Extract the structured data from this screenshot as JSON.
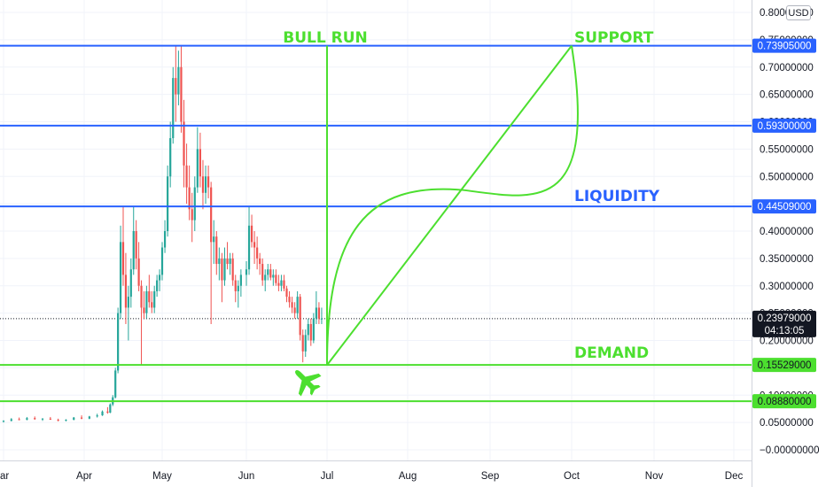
{
  "currency_badge": "USD",
  "chart_data": {
    "type": "candlestick",
    "y_axis": {
      "ticks": [
        0.8,
        0.75,
        0.7,
        0.65,
        0.6,
        0.55,
        0.5,
        0.45,
        0.4,
        0.35,
        0.3,
        0.25,
        0.2,
        0.15,
        0.1,
        0.05,
        0.0
      ],
      "tick_labels": [
        "0.80000000",
        "0.75000000",
        "0.70000000",
        "0.65000000",
        "0.60000000",
        "0.55000000",
        "0.50000000",
        "0.45000000",
        "0.40000000",
        "0.35000000",
        "0.30000000",
        "0.25000000",
        "0.20000000",
        "0.15000000",
        "0.10000000",
        "0.05000000",
        "−0.00000000"
      ],
      "ylim": [
        -0.012,
        0.81
      ]
    },
    "x_axis": {
      "labels": [
        "ar",
        "Apr",
        "May",
        "Jun",
        "Jul",
        "Aug",
        "Sep",
        "Oct",
        "Nov",
        "Dec"
      ],
      "label_dates": [
        "2021-03-01",
        "2021-04-01",
        "2021-05-01",
        "2021-06-01",
        "2021-07-01",
        "2021-08-01",
        "2021-09-01",
        "2021-10-01",
        "2021-11-01",
        "2021-12-01"
      ],
      "xlim": [
        "2021-03-01",
        "2021-12-05"
      ]
    },
    "horizontal_levels": [
      {
        "value": 0.73905,
        "label": "0.73905000",
        "color": "#2962ff"
      },
      {
        "value": 0.593,
        "label": "0.59300000",
        "color": "#2962ff"
      },
      {
        "value": 0.44509,
        "label": "0.44509000",
        "color": "#2962ff"
      },
      {
        "value": 0.15529,
        "label": "0.15529000",
        "color": "#4cdf2f"
      },
      {
        "value": 0.0888,
        "label": "0.08880000",
        "color": "#4cdf2f"
      }
    ],
    "current_price": {
      "value": 0.23979,
      "label": "0.23979000",
      "countdown": "04:13:05"
    },
    "annotations": [
      {
        "text": "BULL RUN",
        "color": "#4cdf2f"
      },
      {
        "text": "SUPPORT",
        "color": "#4cdf2f"
      },
      {
        "text": "LIQUIDITY",
        "color": "#2962ff"
      },
      {
        "text": "DEMAND",
        "color": "#4cdf2f"
      }
    ],
    "drawing": {
      "bull_run_line_date": "2021-07-01",
      "projection_start": {
        "date": "2021-07-01",
        "value": 0.155
      },
      "projection_end": {
        "date": "2021-10-01",
        "value": 0.739
      },
      "curve_midpoint": {
        "date": "2021-08-22",
        "value": 0.475
      }
    },
    "airplane_icon": "airplane-icon",
    "colors": {
      "up": "#26a69a",
      "down": "#ef5350",
      "blue_line": "#2962ff",
      "green_line": "#4cdf2f",
      "current": "#131722"
    },
    "candles": [
      [
        "2021-03-01",
        0.052,
        0.054,
        0.05,
        0.053
      ],
      [
        "2021-03-04",
        0.053,
        0.058,
        0.052,
        0.056
      ],
      [
        "2021-03-07",
        0.056,
        0.059,
        0.054,
        0.055
      ],
      [
        "2021-03-10",
        0.055,
        0.06,
        0.054,
        0.058
      ],
      [
        "2021-03-13",
        0.058,
        0.061,
        0.055,
        0.056
      ],
      [
        "2021-03-16",
        0.056,
        0.058,
        0.053,
        0.057
      ],
      [
        "2021-03-19",
        0.057,
        0.06,
        0.055,
        0.055
      ],
      [
        "2021-03-22",
        0.055,
        0.057,
        0.052,
        0.054
      ],
      [
        "2021-03-25",
        0.054,
        0.056,
        0.052,
        0.055
      ],
      [
        "2021-03-28",
        0.055,
        0.06,
        0.054,
        0.059
      ],
      [
        "2021-03-31",
        0.059,
        0.063,
        0.056,
        0.057
      ],
      [
        "2021-04-03",
        0.057,
        0.062,
        0.056,
        0.061
      ],
      [
        "2021-04-06",
        0.061,
        0.066,
        0.059,
        0.063
      ],
      [
        "2021-04-08",
        0.063,
        0.072,
        0.062,
        0.07
      ],
      [
        "2021-04-10",
        0.07,
        0.078,
        0.066,
        0.068
      ],
      [
        "2021-04-11",
        0.068,
        0.085,
        0.067,
        0.083
      ],
      [
        "2021-04-12",
        0.083,
        0.1,
        0.08,
        0.096
      ],
      [
        "2021-04-13",
        0.096,
        0.15,
        0.094,
        0.145
      ],
      [
        "2021-04-14",
        0.145,
        0.26,
        0.14,
        0.25
      ],
      [
        "2021-04-15",
        0.25,
        0.41,
        0.24,
        0.38
      ],
      [
        "2021-04-16",
        0.38,
        0.445,
        0.3,
        0.32
      ],
      [
        "2021-04-17",
        0.32,
        0.36,
        0.23,
        0.26
      ],
      [
        "2021-04-18",
        0.26,
        0.3,
        0.2,
        0.28
      ],
      [
        "2021-04-19",
        0.28,
        0.35,
        0.26,
        0.33
      ],
      [
        "2021-04-20",
        0.33,
        0.445,
        0.32,
        0.4
      ],
      [
        "2021-04-21",
        0.4,
        0.42,
        0.33,
        0.35
      ],
      [
        "2021-04-22",
        0.35,
        0.38,
        0.29,
        0.3
      ],
      [
        "2021-04-23",
        0.3,
        0.31,
        0.155,
        0.26
      ],
      [
        "2021-04-24",
        0.26,
        0.29,
        0.24,
        0.25
      ],
      [
        "2021-04-25",
        0.25,
        0.3,
        0.24,
        0.29
      ],
      [
        "2021-04-26",
        0.29,
        0.32,
        0.26,
        0.27
      ],
      [
        "2021-04-27",
        0.27,
        0.29,
        0.25,
        0.26
      ],
      [
        "2021-04-28",
        0.26,
        0.3,
        0.25,
        0.29
      ],
      [
        "2021-04-29",
        0.29,
        0.32,
        0.28,
        0.31
      ],
      [
        "2021-04-30",
        0.31,
        0.33,
        0.29,
        0.32
      ],
      [
        "2021-05-01",
        0.32,
        0.38,
        0.31,
        0.37
      ],
      [
        "2021-05-02",
        0.37,
        0.42,
        0.36,
        0.4
      ],
      [
        "2021-05-03",
        0.4,
        0.52,
        0.39,
        0.5
      ],
      [
        "2021-05-04",
        0.5,
        0.6,
        0.48,
        0.57
      ],
      [
        "2021-05-05",
        0.57,
        0.7,
        0.56,
        0.68
      ],
      [
        "2021-05-06",
        0.68,
        0.739,
        0.6,
        0.65
      ],
      [
        "2021-05-07",
        0.65,
        0.73,
        0.63,
        0.7
      ],
      [
        "2021-05-08",
        0.7,
        0.739,
        0.58,
        0.6
      ],
      [
        "2021-05-09",
        0.6,
        0.64,
        0.48,
        0.52
      ],
      [
        "2021-05-10",
        0.52,
        0.56,
        0.45,
        0.48
      ],
      [
        "2021-05-11",
        0.48,
        0.52,
        0.42,
        0.44
      ],
      [
        "2021-05-12",
        0.44,
        0.47,
        0.38,
        0.42
      ],
      [
        "2021-05-13",
        0.42,
        0.5,
        0.4,
        0.48
      ],
      [
        "2021-05-14",
        0.48,
        0.59,
        0.47,
        0.55
      ],
      [
        "2021-05-15",
        0.55,
        0.58,
        0.48,
        0.5
      ],
      [
        "2021-05-16",
        0.5,
        0.53,
        0.44,
        0.47
      ],
      [
        "2021-05-17",
        0.47,
        0.52,
        0.45,
        0.5
      ],
      [
        "2021-05-18",
        0.5,
        0.52,
        0.46,
        0.48
      ],
      [
        "2021-05-19",
        0.48,
        0.49,
        0.23,
        0.38
      ],
      [
        "2021-05-20",
        0.38,
        0.42,
        0.34,
        0.39
      ],
      [
        "2021-05-21",
        0.39,
        0.4,
        0.32,
        0.34
      ],
      [
        "2021-05-22",
        0.34,
        0.37,
        0.31,
        0.35
      ],
      [
        "2021-05-23",
        0.35,
        0.36,
        0.27,
        0.31
      ],
      [
        "2021-05-24",
        0.31,
        0.37,
        0.3,
        0.35
      ],
      [
        "2021-05-25",
        0.35,
        0.38,
        0.33,
        0.34
      ],
      [
        "2021-05-26",
        0.34,
        0.36,
        0.32,
        0.35
      ],
      [
        "2021-05-27",
        0.35,
        0.36,
        0.3,
        0.31
      ],
      [
        "2021-05-28",
        0.31,
        0.32,
        0.27,
        0.29
      ],
      [
        "2021-05-29",
        0.29,
        0.31,
        0.26,
        0.3
      ],
      [
        "2021-05-30",
        0.3,
        0.33,
        0.28,
        0.32
      ],
      [
        "2021-06-01",
        0.32,
        0.345,
        0.3,
        0.33
      ],
      [
        "2021-06-02",
        0.33,
        0.445,
        0.32,
        0.41
      ],
      [
        "2021-06-03",
        0.41,
        0.43,
        0.37,
        0.38
      ],
      [
        "2021-06-04",
        0.38,
        0.4,
        0.34,
        0.37
      ],
      [
        "2021-06-05",
        0.37,
        0.39,
        0.33,
        0.35
      ],
      [
        "2021-06-06",
        0.35,
        0.36,
        0.32,
        0.34
      ],
      [
        "2021-06-07",
        0.34,
        0.35,
        0.3,
        0.31
      ],
      [
        "2021-06-08",
        0.31,
        0.33,
        0.29,
        0.32
      ],
      [
        "2021-06-09",
        0.32,
        0.34,
        0.31,
        0.33
      ],
      [
        "2021-06-10",
        0.33,
        0.34,
        0.31,
        0.315
      ],
      [
        "2021-06-11",
        0.315,
        0.33,
        0.3,
        0.32
      ],
      [
        "2021-06-12",
        0.32,
        0.33,
        0.3,
        0.305
      ],
      [
        "2021-06-13",
        0.305,
        0.32,
        0.29,
        0.3
      ],
      [
        "2021-06-14",
        0.3,
        0.32,
        0.29,
        0.31
      ],
      [
        "2021-06-15",
        0.31,
        0.32,
        0.29,
        0.295
      ],
      [
        "2021-06-16",
        0.295,
        0.3,
        0.27,
        0.28
      ],
      [
        "2021-06-17",
        0.28,
        0.29,
        0.26,
        0.27
      ],
      [
        "2021-06-18",
        0.27,
        0.28,
        0.25,
        0.26
      ],
      [
        "2021-06-19",
        0.26,
        0.27,
        0.24,
        0.25
      ],
      [
        "2021-06-20",
        0.25,
        0.29,
        0.24,
        0.28
      ],
      [
        "2021-06-21",
        0.28,
        0.285,
        0.2,
        0.21
      ],
      [
        "2021-06-22",
        0.21,
        0.22,
        0.16,
        0.18
      ],
      [
        "2021-06-23",
        0.18,
        0.22,
        0.17,
        0.21
      ],
      [
        "2021-06-24",
        0.21,
        0.24,
        0.2,
        0.23
      ],
      [
        "2021-06-25",
        0.23,
        0.24,
        0.19,
        0.2
      ],
      [
        "2021-06-26",
        0.2,
        0.25,
        0.195,
        0.24
      ],
      [
        "2021-06-27",
        0.24,
        0.29,
        0.23,
        0.26
      ],
      [
        "2021-06-28",
        0.26,
        0.27,
        0.23,
        0.24
      ],
      [
        "2021-06-29",
        0.24,
        0.26,
        0.23,
        0.24
      ]
    ]
  }
}
